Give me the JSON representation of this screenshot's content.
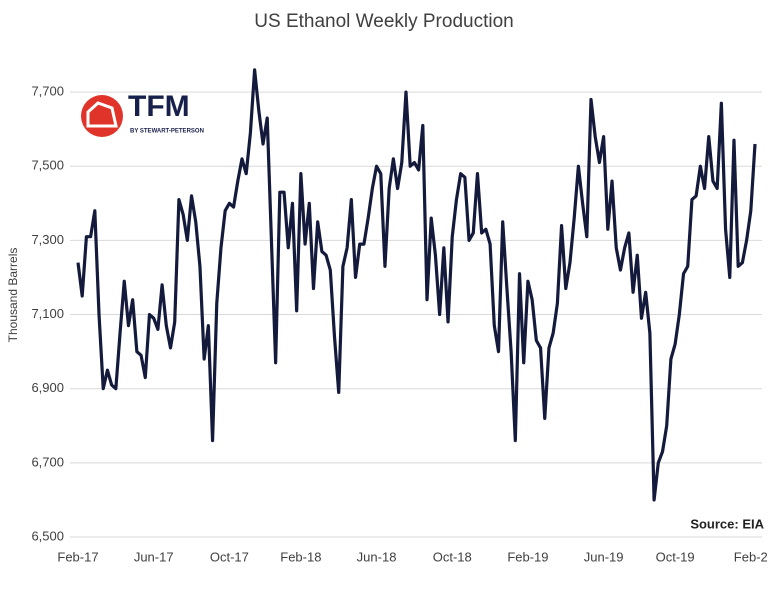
{
  "chart_data": {
    "type": "line",
    "title": "US Ethanol Weekly Production",
    "y_label": "Thousand Barrels",
    "source": "Source: EIA",
    "logo": {
      "name": "TFM",
      "tagline": "BY STEWART-PETERSON"
    },
    "color": "#141a3c",
    "grid": true,
    "ylim": [
      6500,
      7800
    ],
    "yticks": [
      {
        "value": 6500,
        "label": "6,500"
      },
      {
        "value": 6700,
        "label": "6,700"
      },
      {
        "value": 6900,
        "label": "6,900"
      },
      {
        "value": 7100,
        "label": "7,100"
      },
      {
        "value": 7300,
        "label": "7,300"
      },
      {
        "value": 7500,
        "label": "7,500"
      },
      {
        "value": 7700,
        "label": "7,700"
      }
    ],
    "categories": [
      "Feb-17",
      null,
      null,
      null,
      null,
      null,
      null,
      null,
      null,
      null,
      null,
      null,
      null,
      null,
      null,
      null,
      null,
      null,
      "Jun-17",
      null,
      null,
      null,
      null,
      null,
      null,
      null,
      null,
      null,
      null,
      null,
      null,
      null,
      null,
      null,
      null,
      null,
      "Oct-17",
      null,
      null,
      null,
      null,
      null,
      null,
      null,
      null,
      null,
      null,
      null,
      null,
      null,
      null,
      null,
      null,
      "Feb-18",
      null,
      null,
      null,
      null,
      null,
      null,
      null,
      null,
      null,
      null,
      null,
      null,
      null,
      null,
      null,
      null,
      null,
      "Jun-18",
      null,
      null,
      null,
      null,
      null,
      null,
      null,
      null,
      null,
      null,
      null,
      null,
      null,
      null,
      null,
      null,
      null,
      "Oct-18",
      null,
      null,
      null,
      null,
      null,
      null,
      null,
      null,
      null,
      null,
      null,
      null,
      null,
      null,
      null,
      null,
      null,
      "Feb-19",
      null,
      null,
      null,
      null,
      null,
      null,
      null,
      null,
      null,
      null,
      null,
      null,
      null,
      null,
      null,
      null,
      null,
      "Jun-19",
      null,
      null,
      null,
      null,
      null,
      null,
      null,
      null,
      null,
      null,
      null,
      null,
      null,
      null,
      null,
      null,
      "Oct-19",
      null,
      null,
      null,
      null,
      null,
      null,
      null,
      null,
      null,
      null,
      null,
      null,
      null,
      null,
      null,
      null,
      null,
      "Feb-2",
      null
    ],
    "values": [
      7240,
      7150,
      7310,
      7310,
      7380,
      7100,
      6900,
      6950,
      6910,
      6900,
      7050,
      7190,
      7070,
      7140,
      7000,
      6990,
      6930,
      7100,
      7090,
      7060,
      7180,
      7070,
      7010,
      7080,
      7410,
      7370,
      7300,
      7420,
      7350,
      7230,
      6980,
      7070,
      6760,
      7130,
      7280,
      7380,
      7400,
      7390,
      7460,
      7520,
      7480,
      7590,
      7760,
      7650,
      7560,
      7630,
      7300,
      6970,
      7430,
      7430,
      7280,
      7400,
      7110,
      7480,
      7290,
      7400,
      7170,
      7350,
      7270,
      7260,
      7220,
      7040,
      6890,
      7230,
      7280,
      7410,
      7200,
      7290,
      7290,
      7360,
      7440,
      7500,
      7480,
      7230,
      7440,
      7520,
      7440,
      7510,
      7700,
      7500,
      7510,
      7490,
      7610,
      7140,
      7360,
      7260,
      7100,
      7280,
      7080,
      7310,
      7410,
      7480,
      7470,
      7300,
      7320,
      7480,
      7320,
      7330,
      7290,
      7070,
      7000,
      7350,
      7170,
      7000,
      6760,
      7210,
      6970,
      7190,
      7140,
      7030,
      7010,
      6820,
      7010,
      7050,
      7130,
      7340,
      7170,
      7240,
      7360,
      7500,
      7400,
      7310,
      7680,
      7580,
      7510,
      7580,
      7330,
      7460,
      7280,
      7220,
      7280,
      7320,
      7160,
      7260,
      7090,
      7160,
      7050,
      6600,
      6700,
      6730,
      6800,
      6980,
      7020,
      7100,
      7210,
      7230,
      7410,
      7420,
      7500,
      7440,
      7580,
      7460,
      7440,
      7670,
      7330,
      7200,
      7570,
      7230,
      7240,
      7300,
      7380,
      7560
    ]
  }
}
